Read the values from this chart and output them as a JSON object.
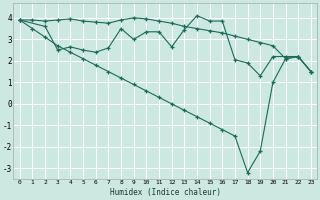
{
  "xlabel": "Humidex (Indice chaleur)",
  "xlim": [
    -0.5,
    23.5
  ],
  "ylim": [
    -3.5,
    4.7
  ],
  "bg_color": "#cce8e0",
  "line_color": "#1a6b5a",
  "grid_color": "#ffffff",
  "line1_x": [
    0,
    1,
    2,
    3,
    4,
    5,
    6,
    7,
    8,
    9,
    10,
    11,
    12,
    13,
    14,
    15,
    16,
    17,
    18,
    19,
    20,
    21,
    22,
    23
  ],
  "line1_y": [
    3.9,
    3.9,
    3.85,
    3.9,
    3.95,
    3.85,
    3.8,
    3.75,
    3.9,
    4.0,
    3.95,
    3.85,
    3.75,
    3.6,
    3.5,
    3.4,
    3.3,
    3.15,
    3.0,
    2.85,
    2.7,
    2.1,
    2.2,
    1.5
  ],
  "line2_x": [
    0,
    2,
    3,
    4,
    5,
    6,
    7,
    8,
    9,
    10,
    11,
    12,
    13,
    14,
    15,
    16,
    17,
    18,
    19,
    20,
    21,
    22,
    23
  ],
  "line2_y": [
    3.9,
    3.6,
    2.5,
    2.65,
    2.5,
    2.4,
    2.6,
    3.5,
    3.0,
    3.35,
    3.35,
    2.65,
    3.45,
    4.1,
    3.85,
    3.85,
    2.05,
    1.9,
    1.3,
    2.2,
    2.2,
    2.2,
    1.5
  ],
  "line3_x": [
    0,
    1,
    2,
    3,
    4,
    5,
    6,
    7,
    8,
    9,
    10,
    11,
    12,
    13,
    14,
    15,
    16,
    17,
    18,
    19,
    20,
    21,
    22,
    23
  ],
  "line3_y": [
    3.9,
    3.5,
    3.1,
    2.7,
    2.4,
    2.1,
    1.8,
    1.5,
    1.2,
    0.9,
    0.6,
    0.3,
    0.0,
    -0.3,
    -0.6,
    -0.9,
    -1.2,
    -1.5,
    -3.2,
    -2.2,
    1.0,
    2.1,
    2.2,
    1.5
  ],
  "ytick_vals": [
    -3,
    -2,
    -1,
    0,
    1,
    2,
    3,
    4
  ],
  "xtick_vals": [
    0,
    1,
    2,
    3,
    4,
    5,
    6,
    7,
    8,
    9,
    10,
    11,
    12,
    13,
    14,
    15,
    16,
    17,
    18,
    19,
    20,
    21,
    22,
    23
  ]
}
